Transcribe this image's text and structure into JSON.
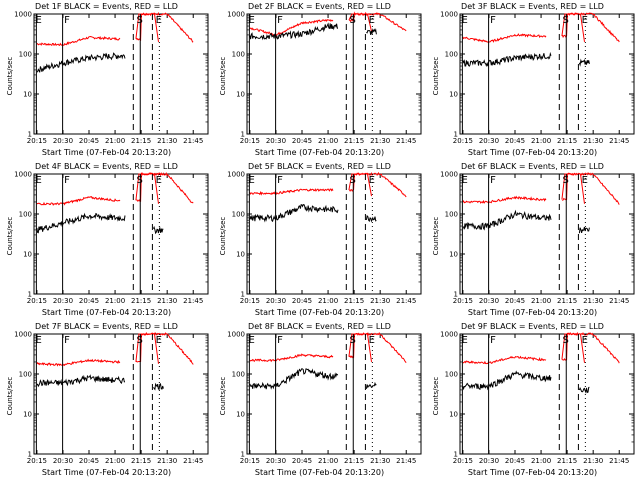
{
  "x_tick_labels": [
    "20:15",
    "20:30",
    "20:45",
    "21:00",
    "21:15",
    "21:30",
    "21:45"
  ],
  "y_tick_labels": [
    "1",
    "10",
    "100",
    "1000"
  ],
  "marker_labels": {
    "F": "F",
    "S": "S",
    "E": "E"
  },
  "colors": {
    "events": "#000000",
    "lld": "#ff0000"
  },
  "chart_data": [
    {
      "type": "line",
      "title": "Det 1F BLACK = Events, RED = LLD",
      "xlabel": "Start Time (07-Feb-04 20:13:20)",
      "ylabel": "Counts/sec",
      "yscale": "log",
      "ylim": [
        1,
        1000
      ],
      "x": [
        "20:15",
        "20:30",
        "20:45",
        "21:00",
        "21:15",
        "21:30",
        "21:45"
      ],
      "series": [
        {
          "name": "BLACK = Events",
          "values": [
            40,
            60,
            80,
            90,
            null,
            null,
            null
          ]
        },
        {
          "name": "RED = LLD",
          "values": [
            180,
            170,
            260,
            240,
            null,
            1000,
            200
          ]
        }
      ]
    },
    {
      "type": "line",
      "title": "Det 2F BLACK = Events, RED = LLD",
      "xlabel": "Start Time (07-Feb-04 20:13:20)",
      "ylabel": "Counts/sec",
      "yscale": "log",
      "ylim": [
        1,
        1000
      ],
      "x": [
        "20:15",
        "20:30",
        "20:45",
        "21:00",
        "21:15",
        "21:30",
        "21:45"
      ],
      "series": [
        {
          "name": "BLACK = Events",
          "values": [
            null,
            280,
            320,
            500,
            null,
            350,
            null
          ]
        },
        {
          "name": "RED = LLD",
          "values": [
            450,
            300,
            600,
            700,
            null,
            1000,
            370
          ]
        }
      ]
    },
    {
      "type": "line",
      "title": "Det 3F BLACK = Events, RED = LLD",
      "xlabel": "Start Time (07-Feb-04 20:13:20)",
      "ylabel": "Counts/sec",
      "yscale": "log",
      "ylim": [
        1,
        1000
      ],
      "x": [
        "20:15",
        "20:30",
        "20:45",
        "21:00",
        "21:15",
        "21:30",
        "21:45"
      ],
      "series": [
        {
          "name": "BLACK = Events",
          "values": [
            null,
            60,
            80,
            90,
            null,
            60,
            null
          ]
        },
        {
          "name": "RED = LLD",
          "values": [
            260,
            200,
            300,
            280,
            null,
            1000,
            200
          ]
        }
      ]
    },
    {
      "type": "line",
      "title": "Det 4F BLACK = Events, RED = LLD",
      "xlabel": "Start Time (07-Feb-04 20:13:20)",
      "ylabel": "Counts/sec",
      "yscale": "log",
      "ylim": [
        1,
        1000
      ],
      "x": [
        "20:15",
        "20:30",
        "20:45",
        "21:00",
        "21:15",
        "21:30",
        "21:45"
      ],
      "series": [
        {
          "name": "BLACK = Events",
          "values": [
            40,
            60,
            90,
            80,
            null,
            40,
            null
          ]
        },
        {
          "name": "RED = LLD",
          "values": [
            180,
            180,
            260,
            220,
            null,
            1000,
            180
          ]
        }
      ]
    },
    {
      "type": "line",
      "title": "Det 5F BLACK = Events, RED = LLD",
      "xlabel": "Start Time (07-Feb-04 20:13:20)",
      "ylabel": "Counts/sec",
      "yscale": "log",
      "ylim": [
        1,
        1000
      ],
      "x": [
        "20:15",
        "20:30",
        "20:45",
        "21:00",
        "21:15",
        "21:30",
        "21:45"
      ],
      "series": [
        {
          "name": "BLACK = Events",
          "values": [
            null,
            80,
            150,
            130,
            null,
            80,
            null
          ]
        },
        {
          "name": "RED = LLD",
          "values": [
            330,
            330,
            400,
            400,
            null,
            1000,
            280
          ]
        }
      ]
    },
    {
      "type": "line",
      "title": "Det 6F BLACK = Events, RED = LLD",
      "xlabel": "Start Time (07-Feb-04 20:13:20)",
      "ylabel": "Counts/sec",
      "yscale": "log",
      "ylim": [
        1,
        1000
      ],
      "x": [
        "20:15",
        "20:30",
        "20:45",
        "21:00",
        "21:15",
        "21:30",
        "21:45"
      ],
      "series": [
        {
          "name": "BLACK = Events",
          "values": [
            null,
            50,
            100,
            80,
            null,
            40,
            null
          ]
        },
        {
          "name": "RED = LLD",
          "values": [
            200,
            200,
            260,
            230,
            null,
            1000,
            180
          ]
        }
      ]
    },
    {
      "type": "line",
      "title": "Det 7F BLACK = Events, RED = LLD",
      "xlabel": "Start Time (07-Feb-04 20:13:20)",
      "ylabel": "Counts/sec",
      "yscale": "log",
      "ylim": [
        1,
        1000
      ],
      "x": [
        "20:15",
        "20:30",
        "20:45",
        "21:00",
        "21:15",
        "21:30",
        "21:45"
      ],
      "series": [
        {
          "name": "BLACK = Events",
          "values": [
            null,
            60,
            80,
            70,
            null,
            50,
            null
          ]
        },
        {
          "name": "RED = LLD",
          "values": [
            180,
            170,
            220,
            200,
            null,
            1000,
            180
          ]
        }
      ]
    },
    {
      "type": "line",
      "title": "Det 8F BLACK = Events, RED = LLD",
      "xlabel": "Start Time (07-Feb-04 20:13:20)",
      "ylabel": "Counts/sec",
      "yscale": "log",
      "ylim": [
        1,
        1000
      ],
      "x": [
        "20:15",
        "20:30",
        "20:45",
        "21:00",
        "21:15",
        "21:30",
        "21:45"
      ],
      "series": [
        {
          "name": "BLACK = Events",
          "values": [
            null,
            50,
            120,
            90,
            null,
            50,
            null
          ]
        },
        {
          "name": "RED = LLD",
          "values": [
            220,
            220,
            300,
            270,
            null,
            1000,
            200
          ]
        }
      ]
    },
    {
      "type": "line",
      "title": "Det 9F BLACK = Events, RED = LLD",
      "xlabel": "Start Time (07-Feb-04 20:13:20)",
      "ylabel": "Counts/sec",
      "yscale": "log",
      "ylim": [
        1,
        1000
      ],
      "x": [
        "20:15",
        "20:30",
        "20:45",
        "21:00",
        "21:15",
        "21:30",
        "21:45"
      ],
      "series": [
        {
          "name": "BLACK = Events",
          "values": [
            null,
            50,
            100,
            80,
            null,
            40,
            null
          ]
        },
        {
          "name": "RED = LLD",
          "values": [
            200,
            190,
            270,
            230,
            null,
            1000,
            190
          ]
        }
      ]
    }
  ]
}
